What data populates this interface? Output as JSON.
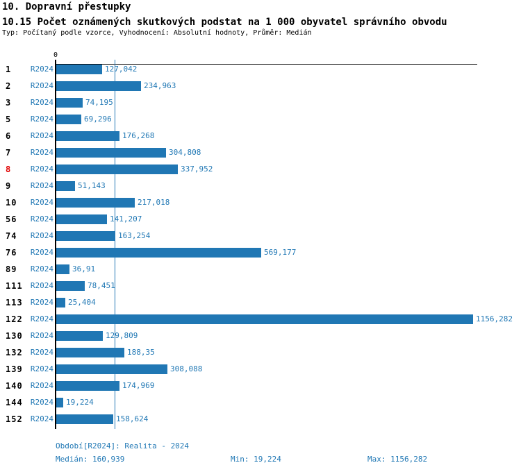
{
  "header": {
    "title": "10. Dopravní přestupky",
    "subtitle": "10.15 Počet oznámených skutkových podstat na 1 000 obyvatel správního obvodu",
    "meta": "Typ: Počítaný podle vzorce, Vyhodnocení: Absolutní hodnoty, Průměr: Medián"
  },
  "chart_data": {
    "type": "bar",
    "orientation": "horizontal",
    "title": "10.15 Počet oznámených skutkových podstat na 1 000 obyvatel správního obvodu",
    "series_label": "R2024",
    "categories": [
      "1",
      "2",
      "3",
      "5",
      "6",
      "7",
      "8",
      "9",
      "10",
      "56",
      "74",
      "76",
      "89",
      "111",
      "113",
      "122",
      "130",
      "132",
      "139",
      "140",
      "144",
      "152"
    ],
    "series": [
      {
        "name": "R2024",
        "values": [
          127.042,
          234.963,
          74.195,
          69.296,
          176.268,
          304.808,
          337.952,
          51.143,
          217.018,
          141.207,
          163.254,
          569.177,
          36.91,
          78.451,
          25.404,
          1156.282,
          129.809,
          188.35,
          308.088,
          174.969,
          19.224,
          158.624
        ]
      }
    ],
    "value_labels": [
      "127,042",
      "234,963",
      "74,195",
      "69,296",
      "176,268",
      "304,808",
      "337,952",
      "51,143",
      "217,018",
      "141,207",
      "163,254",
      "569,177",
      "36,91",
      "78,451",
      "25,404",
      "1156,282",
      "129,809",
      "188,35",
      "308,088",
      "174,969",
      "19,224",
      "158,624"
    ],
    "highlighted_category": "8",
    "axis": {
      "min": 0,
      "max_extent": 1168,
      "zero_label": "0",
      "median_line_value": 160.939,
      "grid": false
    },
    "stats": {
      "median": 160.939,
      "min": 19.224,
      "max": 1156.282
    },
    "colors": {
      "bar": "#2077B4",
      "label_text": "#1F77B4",
      "highlight": "#E00000",
      "axis": "#000000"
    }
  },
  "footer": {
    "period": "Období[R2024]: Realita - 2024",
    "median": "Medián: 160,939",
    "min": "Min: 19,224",
    "max": "Max: 1156,282"
  }
}
